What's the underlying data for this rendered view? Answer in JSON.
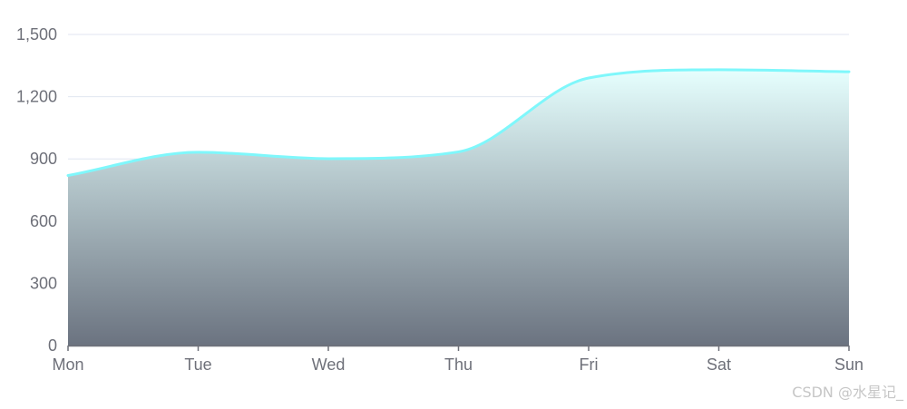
{
  "chart_data": {
    "type": "area",
    "title": "",
    "xlabel": "",
    "ylabel": "",
    "categories": [
      "Mon",
      "Tue",
      "Wed",
      "Thu",
      "Fri",
      "Sat",
      "Sun"
    ],
    "x_tick_labels": [
      "Mon",
      "Tue",
      "Wed",
      "Thu",
      "Fri",
      "Sat",
      "Sun"
    ],
    "y_tick_labels": [
      "0",
      "300",
      "600",
      "900",
      "1,200",
      "1,500"
    ],
    "y_ticks": [
      0,
      300,
      600,
      900,
      1200,
      1500
    ],
    "ylim": [
      0,
      1500
    ],
    "smooth": true,
    "grid": true,
    "legend": "none",
    "series": [
      {
        "values": [
          820,
          932,
          901,
          934,
          1290,
          1330,
          1320
        ],
        "line_color": "#7ff7fb",
        "area_gradient": [
          "#e6fffe",
          "#6b7380"
        ]
      }
    ]
  },
  "watermark": "CSDN @水星记_"
}
